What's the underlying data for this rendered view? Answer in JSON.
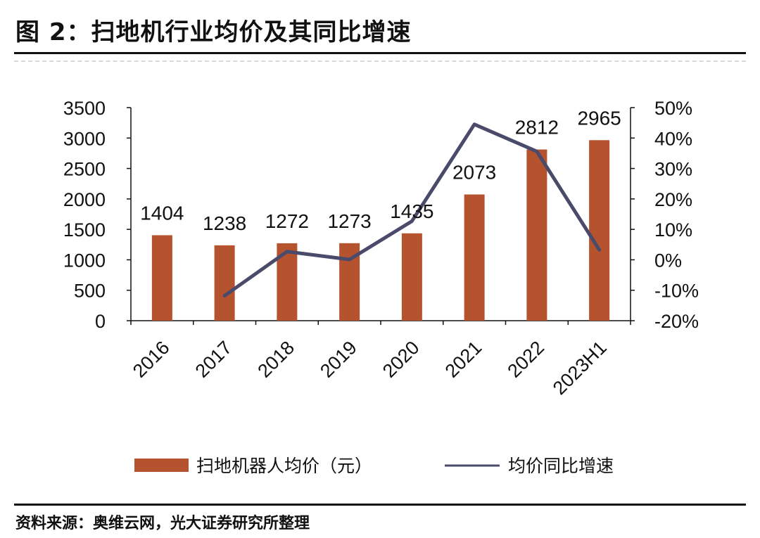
{
  "title": "图 2：扫地机行业均价及其同比增速",
  "source": "资料来源：奥维云网，光大证券研究所整理",
  "colors": {
    "bar": "#B5532F",
    "line": "#4A4A6A",
    "axis": "#111111"
  },
  "chart_data": {
    "type": "bar",
    "categories": [
      "2016",
      "2017",
      "2018",
      "2019",
      "2020",
      "2021",
      "2022",
      "2023H1"
    ],
    "series": [
      {
        "name": "扫地机器人均价（元）",
        "type": "bar",
        "axis": "left",
        "values": [
          1404,
          1238,
          1272,
          1273,
          1435,
          2073,
          2812,
          2965
        ],
        "data_labels": [
          "1404",
          "1238",
          "1272",
          "1273",
          "1435",
          "2073",
          "2812",
          "2965"
        ]
      },
      {
        "name": "均价同比增速",
        "type": "line",
        "axis": "right",
        "values": [
          null,
          -11.8,
          2.7,
          0.1,
          12.7,
          44.5,
          35.6,
          3.3
        ]
      }
    ],
    "y_left": {
      "ylim": [
        0,
        3500
      ],
      "ticks": [
        "0",
        "500",
        "1000",
        "1500",
        "2000",
        "2500",
        "3000",
        "3500"
      ]
    },
    "y_right": {
      "ylim": [
        -20,
        50
      ],
      "ticks": [
        "-20%",
        "-10%",
        "0%",
        "10%",
        "20%",
        "30%",
        "40%",
        "50%"
      ]
    },
    "legend": "bottom",
    "grid": false
  }
}
